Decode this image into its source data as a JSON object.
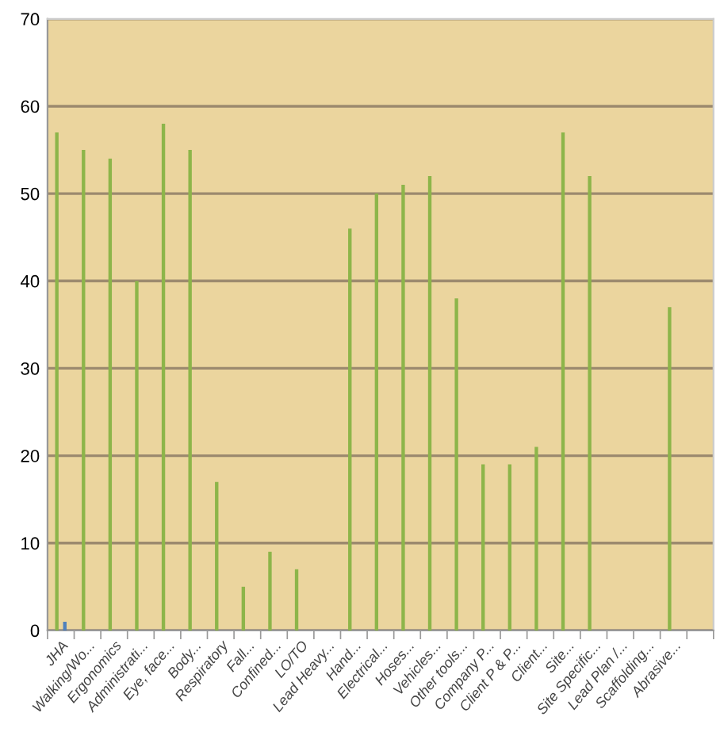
{
  "chart_data": {
    "type": "bar",
    "categories": [
      "JHA",
      "Walking/Wo...",
      "Ergonomics",
      "Administrati...",
      "Eye, face...",
      "Body...",
      "Respiratory",
      "Fall...",
      "Confined...",
      "LO/TO",
      "Lead Heavy...",
      "Hand...",
      "Electrical...",
      "Hoses...",
      "Vehicles...",
      "Other tools...",
      "Company P...",
      "Client P & P...",
      "Client...",
      "Site...",
      "Site Specific...",
      "Lead Plan /...",
      "Scaffolding...",
      "Abrasive...",
      null
    ],
    "series": [
      {
        "color": "#8db54a",
        "values": [
          57,
          55,
          54,
          40,
          58,
          55,
          17,
          5,
          9,
          7,
          null,
          46,
          50,
          51,
          52,
          38,
          19,
          19,
          21,
          57,
          52,
          null,
          null,
          37,
          null
        ]
      },
      {
        "color": "#4f81bd",
        "values": [
          1,
          null,
          null,
          null,
          null,
          null,
          null,
          null,
          null,
          null,
          null,
          null,
          null,
          null,
          null,
          null,
          null,
          null,
          null,
          null,
          null,
          null,
          null,
          null,
          null
        ]
      }
    ],
    "ylim": [
      0,
      70
    ],
    "yticks": [
      0,
      10,
      20,
      30,
      40,
      50,
      60,
      70
    ],
    "grid": "y",
    "legend": false
  }
}
